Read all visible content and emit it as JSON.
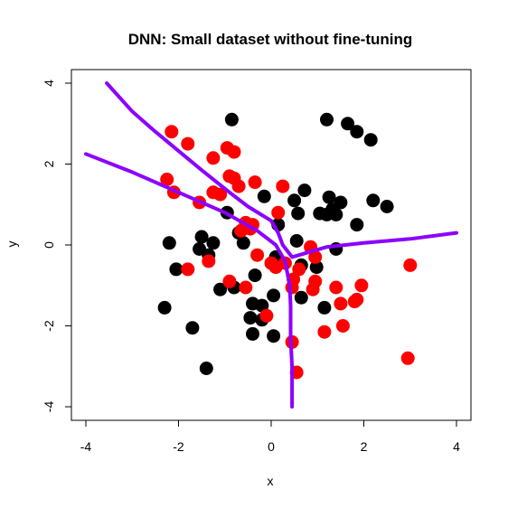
{
  "chart_data": {
    "type": "scatter",
    "title": "DNN: Small dataset without fine-tuning",
    "xlabel": "x",
    "ylabel": "y",
    "xlim": [
      -4,
      4
    ],
    "ylim": [
      -4,
      4
    ],
    "x_ticks": [
      "-4",
      "-2",
      "0",
      "2",
      "4"
    ],
    "y_ticks": [
      "-4",
      "-2",
      "0",
      "2",
      "4"
    ],
    "grid": false,
    "series": [
      {
        "color": "#000000",
        "points": [
          [
            -0.85,
            3.1
          ],
          [
            1.2,
            3.1
          ],
          [
            1.65,
            3.0
          ],
          [
            1.85,
            2.8
          ],
          [
            2.15,
            2.6
          ],
          [
            -0.15,
            1.2
          ],
          [
            0.5,
            1.1
          ],
          [
            0.72,
            1.35
          ],
          [
            1.25,
            1.18
          ],
          [
            1.5,
            1.05
          ],
          [
            2.2,
            1.1
          ],
          [
            2.5,
            0.95
          ],
          [
            -0.95,
            0.8
          ],
          [
            0.58,
            0.78
          ],
          [
            1.05,
            0.78
          ],
          [
            1.2,
            0.75
          ],
          [
            1.4,
            0.75
          ],
          [
            1.32,
            0.88
          ],
          [
            1.85,
            0.5
          ],
          [
            0.15,
            0.5
          ],
          [
            -0.7,
            0.3
          ],
          [
            -1.5,
            0.2
          ],
          [
            -1.25,
            0.05
          ],
          [
            -2.2,
            0.05
          ],
          [
            -1.55,
            -0.1
          ],
          [
            -1.35,
            -0.25
          ],
          [
            -0.6,
            0.05
          ],
          [
            0.55,
            0.1
          ],
          [
            1.4,
            -0.1
          ],
          [
            0.1,
            -0.3
          ],
          [
            0.65,
            -0.5
          ],
          [
            0.98,
            -0.55
          ],
          [
            -2.05,
            -0.6
          ],
          [
            -0.35,
            -0.75
          ],
          [
            -0.8,
            -1.05
          ],
          [
            -1.1,
            -1.1
          ],
          [
            0.05,
            -1.25
          ],
          [
            0.65,
            -1.3
          ],
          [
            -0.4,
            -1.45
          ],
          [
            -0.2,
            -1.5
          ],
          [
            -2.3,
            -1.55
          ],
          [
            1.15,
            -1.55
          ],
          [
            -0.45,
            -1.8
          ],
          [
            -0.2,
            -1.85
          ],
          [
            -1.7,
            -2.05
          ],
          [
            -0.4,
            -2.2
          ],
          [
            0.05,
            -2.25
          ],
          [
            -1.4,
            -3.05
          ]
        ]
      },
      {
        "color": "#ff0000",
        "points": [
          [
            -2.15,
            2.8
          ],
          [
            -1.8,
            2.5
          ],
          [
            -0.95,
            2.4
          ],
          [
            -0.8,
            2.3
          ],
          [
            -1.25,
            2.15
          ],
          [
            -2.25,
            1.62
          ],
          [
            -0.9,
            1.7
          ],
          [
            -0.8,
            1.65
          ],
          [
            -0.35,
            1.55
          ],
          [
            0.25,
            1.45
          ],
          [
            -0.7,
            1.45
          ],
          [
            -2.1,
            1.3
          ],
          [
            -1.25,
            1.3
          ],
          [
            -1.1,
            1.25
          ],
          [
            -1.55,
            1.05
          ],
          [
            0.15,
            0.8
          ],
          [
            -0.55,
            0.55
          ],
          [
            -0.4,
            0.5
          ],
          [
            -0.45,
            0.4
          ],
          [
            -0.65,
            0.35
          ],
          [
            0.85,
            -0.05
          ],
          [
            0.95,
            -0.3
          ],
          [
            -0.3,
            -0.25
          ],
          [
            -1.35,
            -0.4
          ],
          [
            0.0,
            -0.45
          ],
          [
            0.3,
            -0.45
          ],
          [
            0.1,
            -0.55
          ],
          [
            0.6,
            -0.6
          ],
          [
            -1.8,
            -0.6
          ],
          [
            0.48,
            -0.85
          ],
          [
            0.95,
            -0.9
          ],
          [
            1.95,
            -1.0
          ],
          [
            0.45,
            -1.05
          ],
          [
            -0.9,
            -0.9
          ],
          [
            -0.55,
            -1.05
          ],
          [
            1.4,
            -1.05
          ],
          [
            0.9,
            -1.1
          ],
          [
            1.5,
            -1.45
          ],
          [
            1.8,
            -1.4
          ],
          [
            1.85,
            -1.35
          ],
          [
            -0.1,
            -1.75
          ],
          [
            1.55,
            -2.0
          ],
          [
            1.15,
            -2.15
          ],
          [
            0.45,
            -2.4
          ],
          [
            0.55,
            -3.15
          ],
          [
            3.0,
            -0.5
          ],
          [
            2.95,
            -2.8
          ]
        ]
      }
    ],
    "decision_boundary": {
      "color": "#8b00ff",
      "segments": [
        [
          [
            -3.55,
            4.0
          ],
          [
            -3.0,
            3.3
          ],
          [
            -2.5,
            2.8
          ],
          [
            -1.5,
            1.85
          ],
          [
            -0.9,
            1.3
          ],
          [
            -0.5,
            0.95
          ],
          [
            0.0,
            0.6
          ],
          [
            0.15,
            0.3
          ],
          [
            0.25,
            0.0
          ],
          [
            0.45,
            -0.3
          ],
          [
            0.6,
            -0.25
          ],
          [
            1.2,
            -0.05
          ],
          [
            2.0,
            0.05
          ],
          [
            3.0,
            0.15
          ],
          [
            4.0,
            0.3
          ]
        ],
        [
          [
            -4.0,
            2.25
          ],
          [
            -3.0,
            1.8
          ],
          [
            -2.0,
            1.3
          ],
          [
            -1.0,
            0.8
          ],
          [
            -0.3,
            0.35
          ],
          [
            0.1,
            0.0
          ],
          [
            0.3,
            -0.4
          ],
          [
            0.4,
            -1.0
          ],
          [
            0.42,
            -1.5
          ],
          [
            0.42,
            -2.3
          ],
          [
            0.45,
            -3.0
          ],
          [
            0.45,
            -4.0
          ]
        ]
      ]
    }
  }
}
